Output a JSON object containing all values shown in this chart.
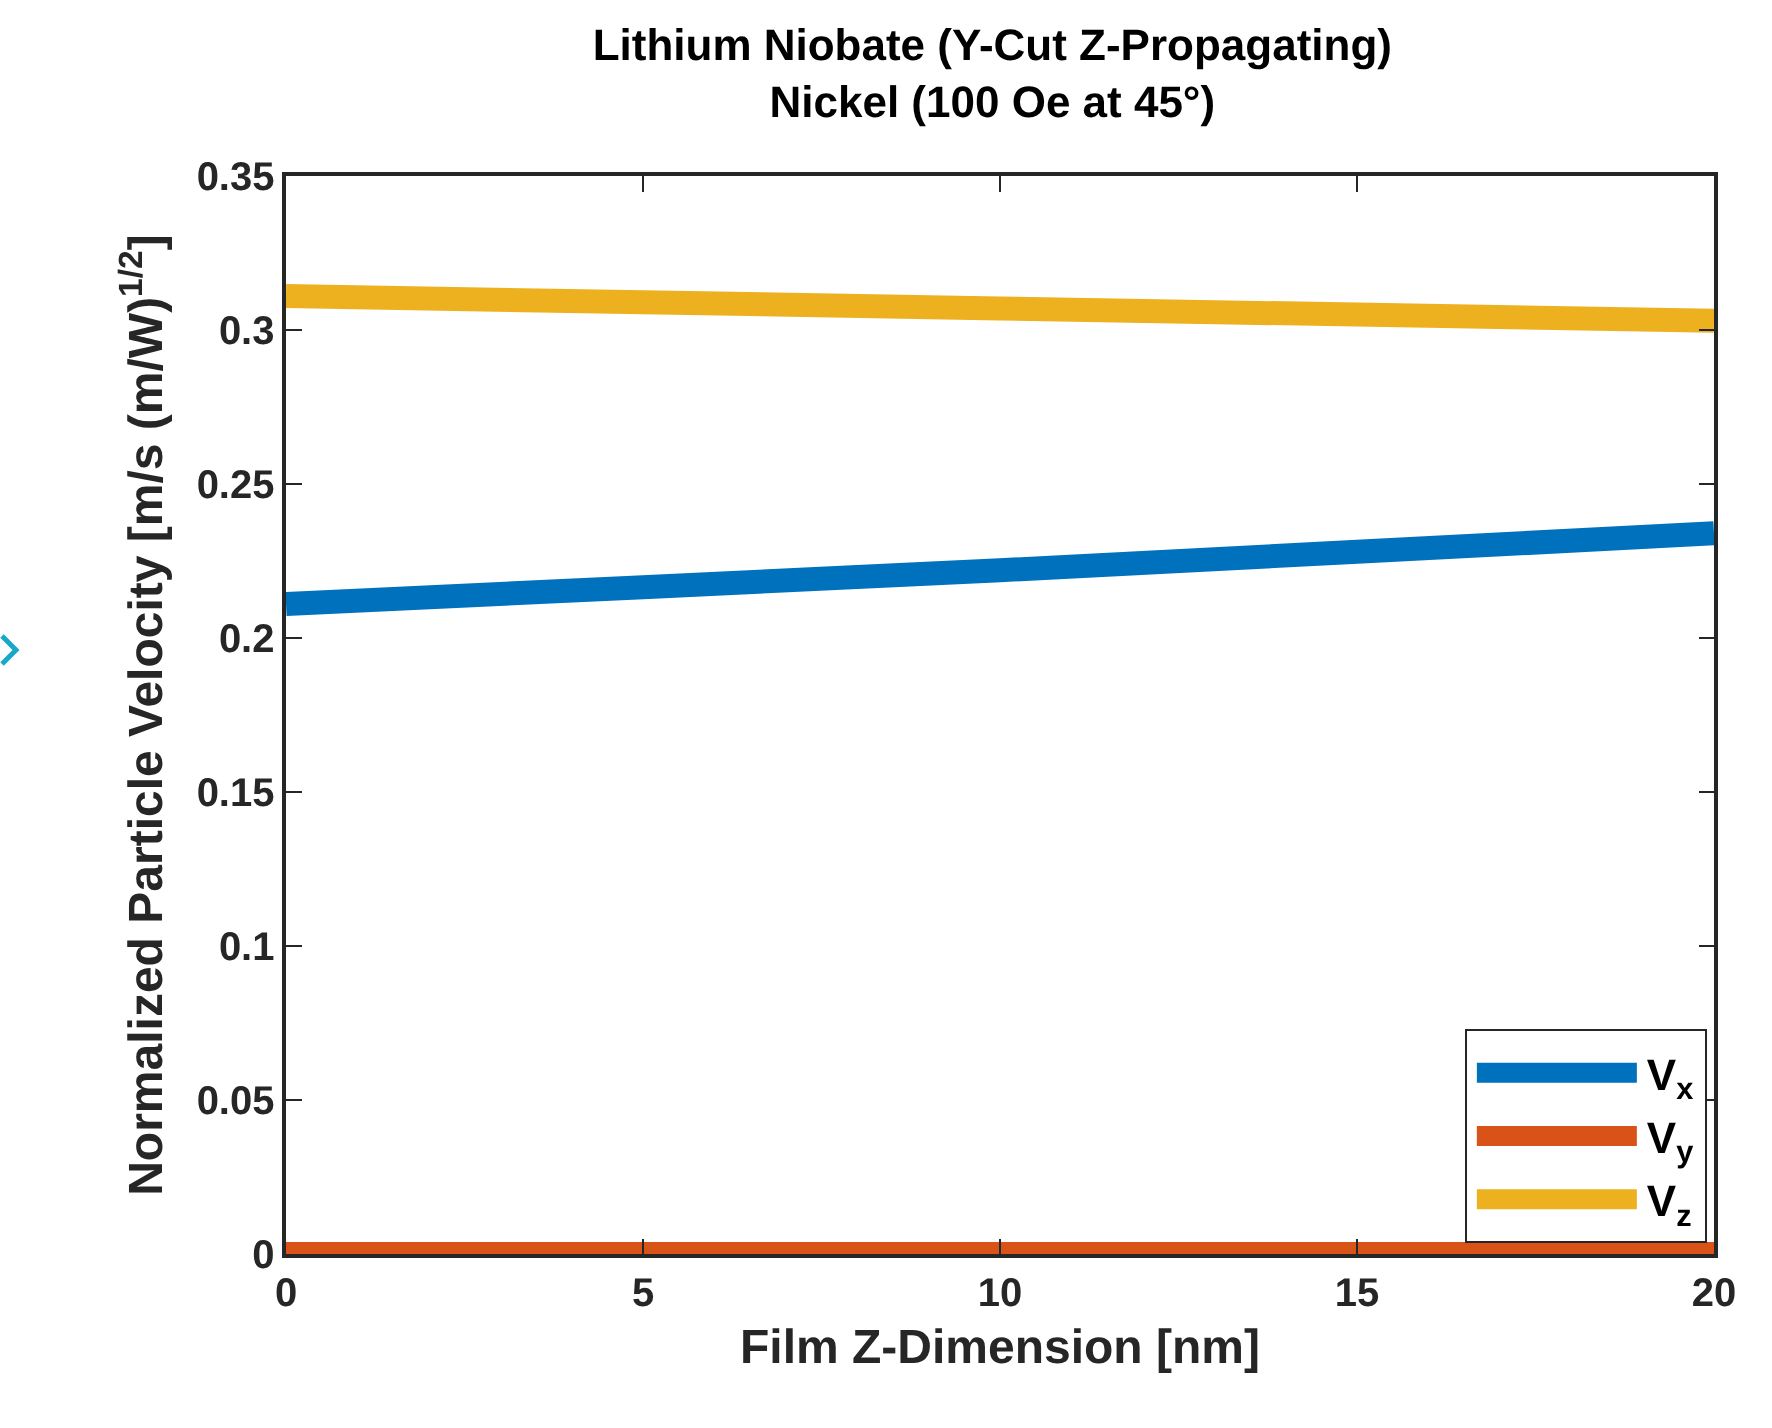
{
  "chart_data": {
    "type": "line",
    "title": "Lithium Niobate (Y-Cut Z-Propagating)\nNickel (100 Oe at 45°)",
    "xlabel": "Film Z-Dimension [nm]",
    "ylabel": "Normalized Particle Velocity [m/s (m/W)$^{1/2}$]",
    "x": [
      0,
      5,
      10,
      15,
      20
    ],
    "series": [
      {
        "name": "V$_{x}$",
        "color": "#0072bd",
        "values": [
          0.211,
          0.2165,
          0.222,
          0.228,
          0.234
        ]
      },
      {
        "name": "V$_{y}$",
        "color": "#d95319",
        "values": [
          0,
          0,
          0,
          0,
          0
        ]
      },
      {
        "name": "V$_{z}$",
        "color": "#edb120",
        "values": [
          0.311,
          0.309,
          0.307,
          0.305,
          0.303
        ]
      }
    ],
    "xlim": [
      0,
      20
    ],
    "xticks": [
      0,
      5,
      10,
      15,
      20
    ],
    "ylim": [
      0,
      0.35
    ],
    "yticks": [
      0,
      0.05,
      0.1,
      0.15,
      0.2,
      0.25,
      0.3,
      0.35
    ],
    "grid": false,
    "legend": "bottom right",
    "marker": "none",
    "line_style": "solid"
  }
}
